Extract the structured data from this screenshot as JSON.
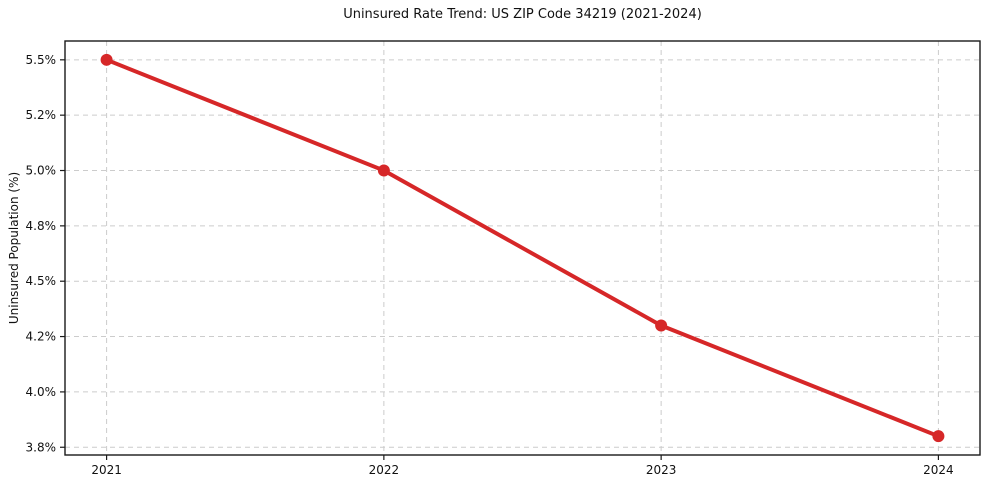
{
  "chart": {
    "title": "Uninsured Rate Trend: US ZIP Code 34219 (2021-2024)",
    "ylabel": "Uninsured Population (%)"
  },
  "chart_data": {
    "type": "line",
    "title": "Uninsured Rate Trend: US ZIP Code 34219 (2021-2024)",
    "xlabel": "",
    "ylabel": "Uninsured Population (%)",
    "x": [
      2021,
      2022,
      2023,
      2024
    ],
    "series": [
      {
        "name": "Uninsured Rate",
        "values": [
          5.5,
          5.0,
          4.3,
          3.8
        ]
      }
    ],
    "xlim": [
      2020.85,
      2024.15
    ],
    "ylim": [
      3.715,
      5.585
    ],
    "xticks": [
      2021,
      2022,
      2023,
      2024
    ],
    "xtick_labels": [
      "2021",
      "2022",
      "2023",
      "2024"
    ],
    "yticks": [
      3.75,
      4.0,
      4.25,
      4.5,
      4.75,
      5.0,
      5.25,
      5.5
    ],
    "ytick_labels": [
      "3.8%",
      "4.0%",
      "4.2%",
      "4.5%",
      "4.8%",
      "5.0%",
      "5.2%",
      "5.5%"
    ],
    "grid": true,
    "legend": false,
    "colors": {
      "line": "#d62728",
      "marker": "#d62728",
      "grid": "#cccccc",
      "spine": "#1a1a1a",
      "text": "#111111",
      "background": "#ffffff"
    },
    "line_width": 4,
    "marker_radius": 6
  }
}
